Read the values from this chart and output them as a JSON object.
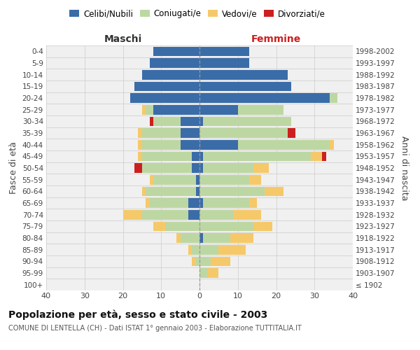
{
  "age_groups": [
    "100+",
    "95-99",
    "90-94",
    "85-89",
    "80-84",
    "75-79",
    "70-74",
    "65-69",
    "60-64",
    "55-59",
    "50-54",
    "45-49",
    "40-44",
    "35-39",
    "30-34",
    "25-29",
    "20-24",
    "15-19",
    "10-14",
    "5-9",
    "0-4"
  ],
  "birth_years": [
    "≤ 1902",
    "1903-1907",
    "1908-1912",
    "1913-1917",
    "1918-1922",
    "1923-1927",
    "1928-1932",
    "1933-1937",
    "1938-1942",
    "1943-1947",
    "1948-1952",
    "1953-1957",
    "1958-1962",
    "1963-1967",
    "1968-1972",
    "1973-1977",
    "1978-1982",
    "1983-1987",
    "1988-1992",
    "1993-1997",
    "1998-2002"
  ],
  "colors": {
    "celibi": "#3a6ca8",
    "coniugati": "#bdd7a3",
    "vedovi": "#f5c96a",
    "divorziati": "#cc2020"
  },
  "maschi": {
    "celibi": [
      0,
      0,
      0,
      0,
      0,
      0,
      3,
      3,
      1,
      1,
      2,
      2,
      5,
      5,
      5,
      12,
      18,
      17,
      15,
      13,
      12
    ],
    "coniugati": [
      0,
      0,
      1,
      2,
      5,
      9,
      12,
      10,
      13,
      11,
      13,
      13,
      10,
      10,
      7,
      2,
      0,
      0,
      0,
      0,
      0
    ],
    "vedovi": [
      0,
      0,
      1,
      1,
      1,
      3,
      5,
      1,
      1,
      1,
      0,
      1,
      1,
      1,
      0,
      1,
      0,
      0,
      0,
      0,
      0
    ],
    "divorziati": [
      0,
      0,
      0,
      0,
      0,
      0,
      0,
      0,
      0,
      0,
      2,
      0,
      0,
      0,
      1,
      0,
      0,
      0,
      0,
      0,
      0
    ]
  },
  "femmine": {
    "celibi": [
      0,
      0,
      0,
      0,
      1,
      0,
      0,
      1,
      0,
      0,
      1,
      1,
      10,
      0,
      1,
      10,
      34,
      24,
      23,
      13,
      13
    ],
    "coniugati": [
      0,
      2,
      3,
      5,
      7,
      14,
      9,
      12,
      17,
      13,
      13,
      28,
      24,
      23,
      23,
      12,
      2,
      0,
      0,
      0,
      0
    ],
    "vedovi": [
      0,
      3,
      5,
      7,
      6,
      5,
      7,
      2,
      5,
      3,
      4,
      3,
      1,
      0,
      0,
      0,
      0,
      0,
      0,
      0,
      0
    ],
    "divorziati": [
      0,
      0,
      0,
      0,
      0,
      0,
      0,
      0,
      0,
      0,
      0,
      1,
      0,
      2,
      0,
      0,
      0,
      0,
      0,
      0,
      0
    ]
  },
  "xlim": 40,
  "title": "Popolazione per età, sesso e stato civile - 2003",
  "subtitle": "COMUNE DI LENTELLA (CH) - Dati ISTAT 1° gennaio 2003 - Elaborazione TUTTITALIA.IT",
  "ylabel_left": "Fasce di età",
  "ylabel_right": "Anni di nascita",
  "xlabel_left": "Maschi",
  "xlabel_right": "Femmine",
  "legend_labels": [
    "Celibi/Nubili",
    "Coniugati/e",
    "Vedovi/e",
    "Divorziati/e"
  ],
  "bg_color": "#f0f0f0",
  "grid_color": "#cccccc",
  "bar_height": 0.82
}
